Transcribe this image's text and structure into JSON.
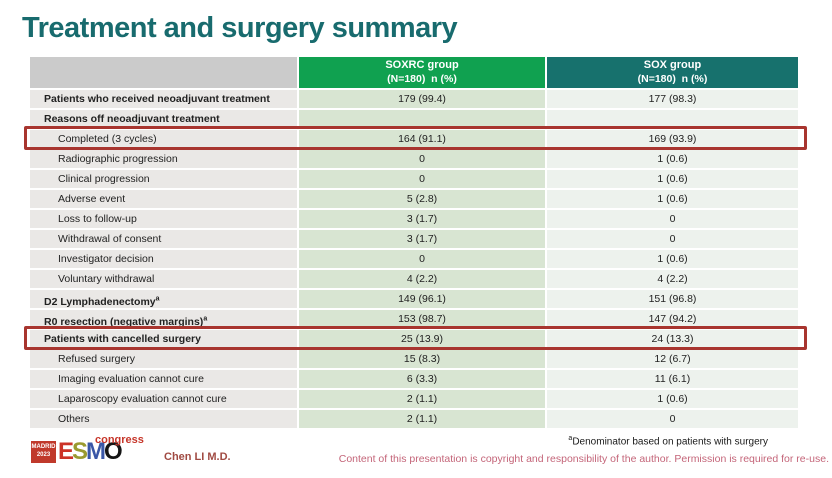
{
  "title": "Treatment and surgery summary",
  "table": {
    "columns": [
      {
        "label": "",
        "sub": ""
      },
      {
        "label": "SOXRC group",
        "sub": "(N=180)  n (%)"
      },
      {
        "label": "SOX group",
        "sub": "(N=180)  n (%)"
      }
    ],
    "rows": [
      {
        "label": "Patients who received neoadjuvant treatment",
        "bold": true,
        "indent": false,
        "soxrc": "179 (99.4)",
        "sox": "177 (98.3)",
        "highlight": false
      },
      {
        "label": "Reasons off neoadjuvant treatment",
        "bold": true,
        "indent": false,
        "soxrc": "",
        "sox": "",
        "highlight": false
      },
      {
        "label": "Completed (3 cycles)",
        "bold": false,
        "indent": true,
        "soxrc": "164 (91.1)",
        "sox": "169 (93.9)",
        "highlight": true
      },
      {
        "label": "Radiographic progression",
        "bold": false,
        "indent": true,
        "soxrc": "0",
        "sox": "1 (0.6)",
        "highlight": false
      },
      {
        "label": "Clinical progression",
        "bold": false,
        "indent": true,
        "soxrc": "0",
        "sox": "1 (0.6)",
        "highlight": false
      },
      {
        "label": "Adverse event",
        "bold": false,
        "indent": true,
        "soxrc": "5 (2.8)",
        "sox": "1 (0.6)",
        "highlight": false
      },
      {
        "label": "Loss to follow-up",
        "bold": false,
        "indent": true,
        "soxrc": "3 (1.7)",
        "sox": "0",
        "highlight": false
      },
      {
        "label": "Withdrawal of consent",
        "bold": false,
        "indent": true,
        "soxrc": "3 (1.7)",
        "sox": "0",
        "highlight": false
      },
      {
        "label": "Investigator decision",
        "bold": false,
        "indent": true,
        "soxrc": "0",
        "sox": "1 (0.6)",
        "highlight": false
      },
      {
        "label": "Voluntary withdrawal",
        "bold": false,
        "indent": true,
        "soxrc": "4 (2.2)",
        "sox": "4 (2.2)",
        "highlight": false
      },
      {
        "label": "D2 Lymphadenectomy",
        "sup": "a",
        "bold": true,
        "indent": false,
        "soxrc": "149 (96.1)",
        "sox": "151 (96.8)",
        "highlight": false
      },
      {
        "label": "R0 resection (negative margins)",
        "sup": "a",
        "bold": true,
        "indent": false,
        "soxrc": "153 (98.7)",
        "sox": "147 (94.2)",
        "highlight": false
      },
      {
        "label": "Patients with cancelled surgery",
        "bold": true,
        "indent": false,
        "soxrc": "25 (13.9)",
        "sox": "24 (13.3)",
        "highlight": true
      },
      {
        "label": "Refused surgery",
        "bold": false,
        "indent": true,
        "soxrc": "15 (8.3)",
        "sox": "12 (6.7)",
        "highlight": false
      },
      {
        "label": "Imaging evaluation cannot cure",
        "bold": false,
        "indent": true,
        "soxrc": "6 (3.3)",
        "sox": "11 (6.1)",
        "highlight": false
      },
      {
        "label": "Laparoscopy evaluation cannot cure",
        "bold": false,
        "indent": true,
        "soxrc": "2 (1.1)",
        "sox": "1 (0.6)",
        "highlight": false
      },
      {
        "label": "Others",
        "bold": false,
        "indent": true,
        "soxrc": "2 (1.1)",
        "sox": "0",
        "highlight": false
      }
    ]
  },
  "footer": {
    "logo": {
      "badge_line1": "MADRID",
      "badge_line2": "2023",
      "letters": [
        "E",
        "S",
        "M",
        "O"
      ],
      "congress": "congress"
    },
    "author": "Chen LI M.D.",
    "footnote_sup": "a",
    "footnote": "Denominator based on patients with surgery",
    "copyright": "Content of this presentation is copyright and responsibility of the author. Permission is required for re-use."
  },
  "colors": {
    "title_teal": "#186b6e",
    "header_green": "#10a150",
    "header_teal": "#17716d",
    "header_gray": "#cbcbcb",
    "label_cell": "#eae8e6",
    "soxrc_cell": "#d8e5d2",
    "sox_cell": "#edf2ed",
    "highlight_red": "#a8352f",
    "author_red": "#a04a42",
    "copyright_pink": "#c46579",
    "logo_red": "#c0392b"
  }
}
